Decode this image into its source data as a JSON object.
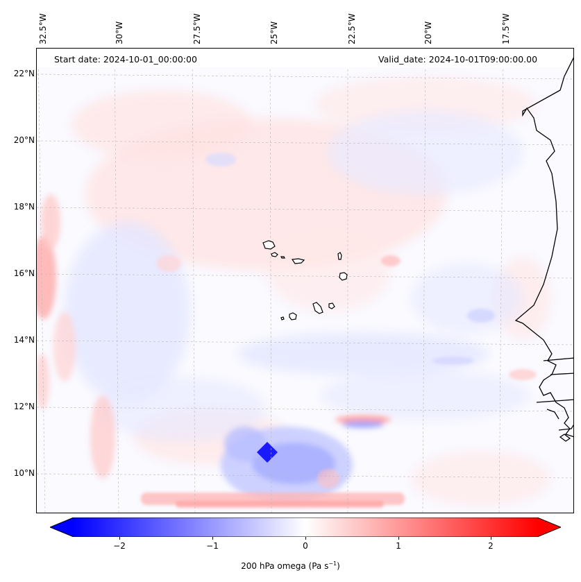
{
  "map": {
    "header_left": "Start date: 2024-10-01_00:00:00",
    "header_right": "Valid_date: 2024-10-01T09:00:00.00",
    "lon_labels": [
      "32.5°W",
      "30°W",
      "27.5°W",
      "25°W",
      "22.5°W",
      "20°W",
      "17.5°W"
    ],
    "lat_labels": [
      "22°N",
      "20°N",
      "18°N",
      "16°N",
      "14°N",
      "12°N",
      "10°N"
    ],
    "field": "200 hPa omega",
    "features": [
      "Cape Verde islands",
      "West African coastline",
      "strong negative omega blob near 25.3°W 10.7°N"
    ]
  },
  "colorbar": {
    "ticks": [
      "−2",
      "−1",
      "0",
      "1",
      "2"
    ],
    "tick_values": [
      -2,
      -1,
      0,
      1,
      2
    ],
    "vmin": -2.5,
    "vmax": 2.5,
    "label_main": "200 hPa omega (Pa s",
    "label_sup": "−1",
    "label_end": ")",
    "colors": {
      "negative": "#0000ff",
      "zero": "#ffffff",
      "positive": "#ff0000"
    }
  }
}
